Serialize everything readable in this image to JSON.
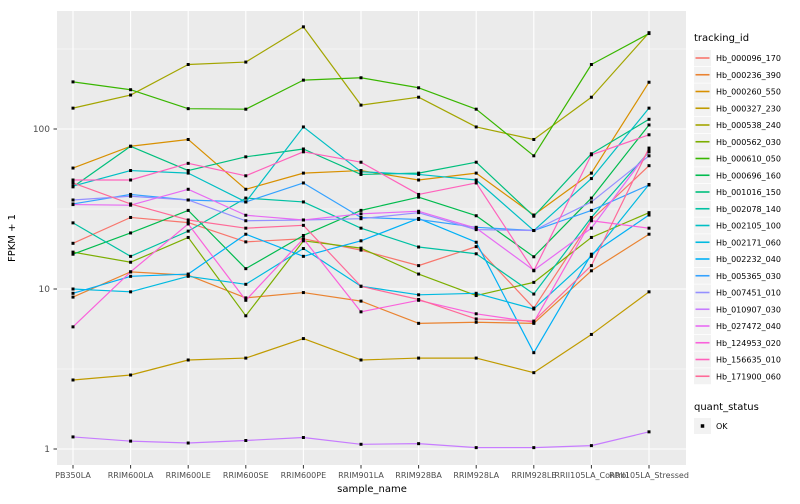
{
  "figure": {
    "bg": "#FFFFFF",
    "panel_bg": "#EBEBEB",
    "grid_color": "#FFFFFF",
    "tick_color": "#333333",
    "tick_label_color": "#4D4D4D",
    "axis_title_color": "#000000",
    "point_color": "#000000",
    "legend_key_bg": "#F2F2F2"
  },
  "chart_data": {
    "type": "line",
    "title": "",
    "xlabel": "sample_name",
    "ylabel": "FPKM + 1",
    "y_scale": "log10",
    "y_ticks": [
      1,
      10,
      100
    ],
    "y_tick_labels": [
      "1",
      "10",
      "100"
    ],
    "y_minor_ticks": [
      3.162,
      31.62,
      316.2
    ],
    "ylim": [
      0.79,
      545
    ],
    "grid": true,
    "legend_position": "right",
    "color_legend_title": "tracking_id",
    "shape_legend_title": "quant_status",
    "shape_legend_items": [
      {
        "label": "OK",
        "shape": "filled-square"
      }
    ],
    "categories": [
      "PB350LA",
      "RRIM600LA",
      "RRIM600LE",
      "RRIM600SE",
      "RRIM600PE",
      "RRIM901LA",
      "RRIM928BA",
      "RRIM928LA",
      "RRIM928LE",
      "RRII105LA_Control",
      "RRII105LA_Stressed"
    ],
    "series": [
      {
        "name": "Hb_000096_170",
        "color": "#F8766D",
        "values": [
          19.3,
          28,
          26,
          19.7,
          20.6,
          17.5,
          14,
          18.4,
          7.6,
          27,
          59
        ]
      },
      {
        "name": "Hb_000236_390",
        "color": "#EA8331",
        "values": [
          8.9,
          12.8,
          12.2,
          8.8,
          9.5,
          8.4,
          6.1,
          6.2,
          6.1,
          13,
          22
        ]
      },
      {
        "name": "Hb_000260_550",
        "color": "#D89000",
        "values": [
          57,
          78,
          86,
          42,
          53,
          55,
          48,
          53,
          29,
          53,
          196
        ]
      },
      {
        "name": "Hb_000327_230",
        "color": "#C09B00",
        "values": [
          2.7,
          2.9,
          3.6,
          3.7,
          4.9,
          3.6,
          3.7,
          3.7,
          3.0,
          5.2,
          9.6
        ]
      },
      {
        "name": "Hb_000538_240",
        "color": "#A3A500",
        "values": [
          135,
          163,
          253,
          262,
          435,
          141,
          158,
          103,
          86,
          158,
          400
        ]
      },
      {
        "name": "Hb_000562_030",
        "color": "#7CAE00",
        "values": [
          17,
          14.7,
          21,
          6.8,
          20,
          18,
          12.4,
          9.1,
          11,
          21,
          30
        ]
      },
      {
        "name": "Hb_000610_050",
        "color": "#39B600",
        "values": [
          197,
          176,
          134,
          133,
          202,
          209,
          181,
          133,
          68,
          253,
          395
        ]
      },
      {
        "name": "Hb_000696_160",
        "color": "#00BB4E",
        "values": [
          16.5,
          22.4,
          31,
          13.4,
          21.6,
          31,
          37.5,
          28.7,
          15.9,
          37,
          106
        ]
      },
      {
        "name": "Hb_001016_150",
        "color": "#00BF7D",
        "values": [
          43.5,
          78,
          55,
          67,
          75,
          52,
          53,
          62,
          28.5,
          70,
          115
        ]
      },
      {
        "name": "Hb_002078_140",
        "color": "#00C1A3",
        "values": [
          25.9,
          16,
          23,
          37,
          35,
          24,
          18.3,
          16.6,
          9.3,
          28,
          72
        ]
      },
      {
        "name": "Hb_002105_100",
        "color": "#00BFC4",
        "values": [
          44,
          55,
          53,
          35,
          103,
          54,
          52,
          48,
          23.2,
          49,
          135
        ]
      },
      {
        "name": "Hb_002171_060",
        "color": "#00BAE0",
        "values": [
          10,
          9.6,
          12,
          10.7,
          17.9,
          10.4,
          9.2,
          9.4,
          7.5,
          16,
          45
        ]
      },
      {
        "name": "Hb_002232_040",
        "color": "#00B0F6",
        "values": [
          9.4,
          12,
          12.4,
          22,
          16,
          20,
          27.6,
          19.6,
          4.0,
          16.5,
          29
        ]
      },
      {
        "name": "Hb_005365_030",
        "color": "#35A2FF",
        "values": [
          34,
          39,
          36,
          35,
          46,
          28,
          27.2,
          24.3,
          23.2,
          31,
          44.7
        ]
      },
      {
        "name": "Hb_007451_010",
        "color": "#9590FF",
        "values": [
          36,
          38,
          36,
          26.7,
          27,
          27.5,
          30,
          23.5,
          23.2,
          35,
          68
        ]
      },
      {
        "name": "Hb_010907_030",
        "color": "#C77CFF",
        "values": [
          1.19,
          1.12,
          1.09,
          1.13,
          1.18,
          1.07,
          1.08,
          1.02,
          1.02,
          1.05,
          1.28
        ]
      },
      {
        "name": "Hb_027472_040",
        "color": "#E76BF3",
        "values": [
          33.7,
          33.4,
          42,
          28.9,
          27,
          29.5,
          30.6,
          24,
          13.1,
          24,
          73
        ]
      },
      {
        "name": "Hb_124953_020",
        "color": "#FA62DB",
        "values": [
          5.8,
          12.8,
          25.5,
          8.5,
          20.6,
          7.2,
          8.5,
          7.0,
          6.2,
          26.7,
          24
        ]
      },
      {
        "name": "Hb_156635_010",
        "color": "#FF62BC",
        "values": [
          48,
          48,
          61,
          51,
          72,
          62,
          39,
          46,
          13,
          69,
          92
        ]
      },
      {
        "name": "Hb_171900_060",
        "color": "#FF6A98",
        "values": [
          46,
          34,
          27,
          24,
          25,
          10.4,
          8.6,
          6.5,
          6.3,
          14,
          76
        ]
      }
    ]
  }
}
